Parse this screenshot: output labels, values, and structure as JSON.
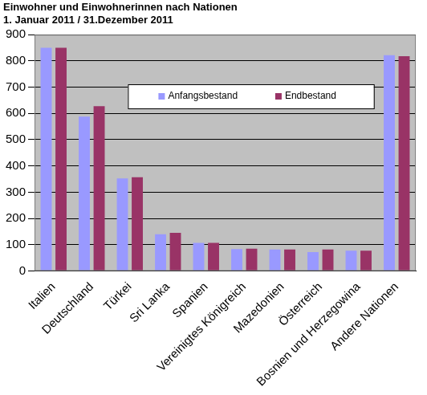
{
  "chart_data": {
    "type": "bar",
    "title": "Einwohner und Einwohnerinnen nach Nationen",
    "subtitle": "1. Januar 2011 / 31.Dezember 2011",
    "categories": [
      "Italien",
      "Deutschland",
      "Türkei",
      "Sri Lanka",
      "Spanien",
      "Vereinigtes Königreich",
      "Mazedonien",
      "Österreich",
      "Bosnien und Herzegowina",
      "Andere Nationen"
    ],
    "series": [
      {
        "name": "Anfangsbestand",
        "color": "#9999ff",
        "values": [
          850,
          588,
          352,
          140,
          107,
          83,
          82,
          72,
          77,
          822
        ]
      },
      {
        "name": "Endbestand",
        "color": "#993366",
        "values": [
          850,
          628,
          357,
          145,
          107,
          85,
          82,
          82,
          77,
          818
        ]
      }
    ],
    "ylim": [
      0,
      900
    ],
    "yticks": [
      0,
      100,
      200,
      300,
      400,
      500,
      600,
      700,
      800,
      900
    ],
    "grid": true,
    "legend": "top"
  }
}
